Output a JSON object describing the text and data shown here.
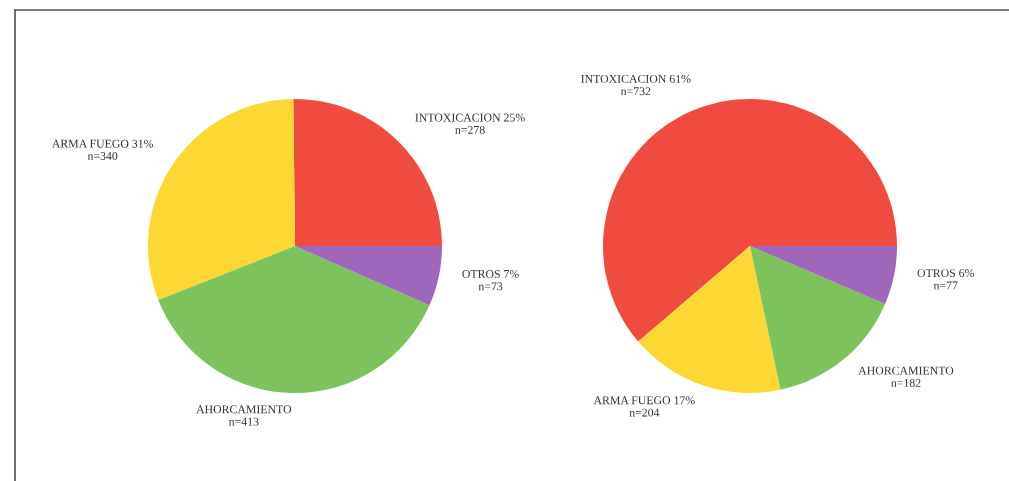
{
  "chart_data": [
    {
      "type": "pie",
      "categories": [
        "INTOXICACION 25%",
        "ARMA FUEGO 31%",
        "AHORCAMIENTO",
        "OTROS 7%"
      ],
      "values": [
        278,
        340,
        413,
        73
      ],
      "value_labels": [
        "n=278",
        "n=340",
        "n=413",
        "n=73"
      ],
      "colors": [
        "#ef4b3f",
        "#fdd835",
        "#7bc35a",
        "#9f66bb"
      ]
    },
    {
      "type": "pie",
      "categories": [
        "INTOXICACION 61%",
        "ARMA FUEGO 17%",
        "AHORCAMIENTO",
        "OTROS 6%"
      ],
      "values": [
        732,
        204,
        182,
        77
      ],
      "value_labels": [
        "n=732",
        "n=204",
        "n=182",
        "n=77"
      ],
      "colors": [
        "#ef4b3f",
        "#fdd835",
        "#7bc35a",
        "#9f66bb"
      ]
    }
  ]
}
